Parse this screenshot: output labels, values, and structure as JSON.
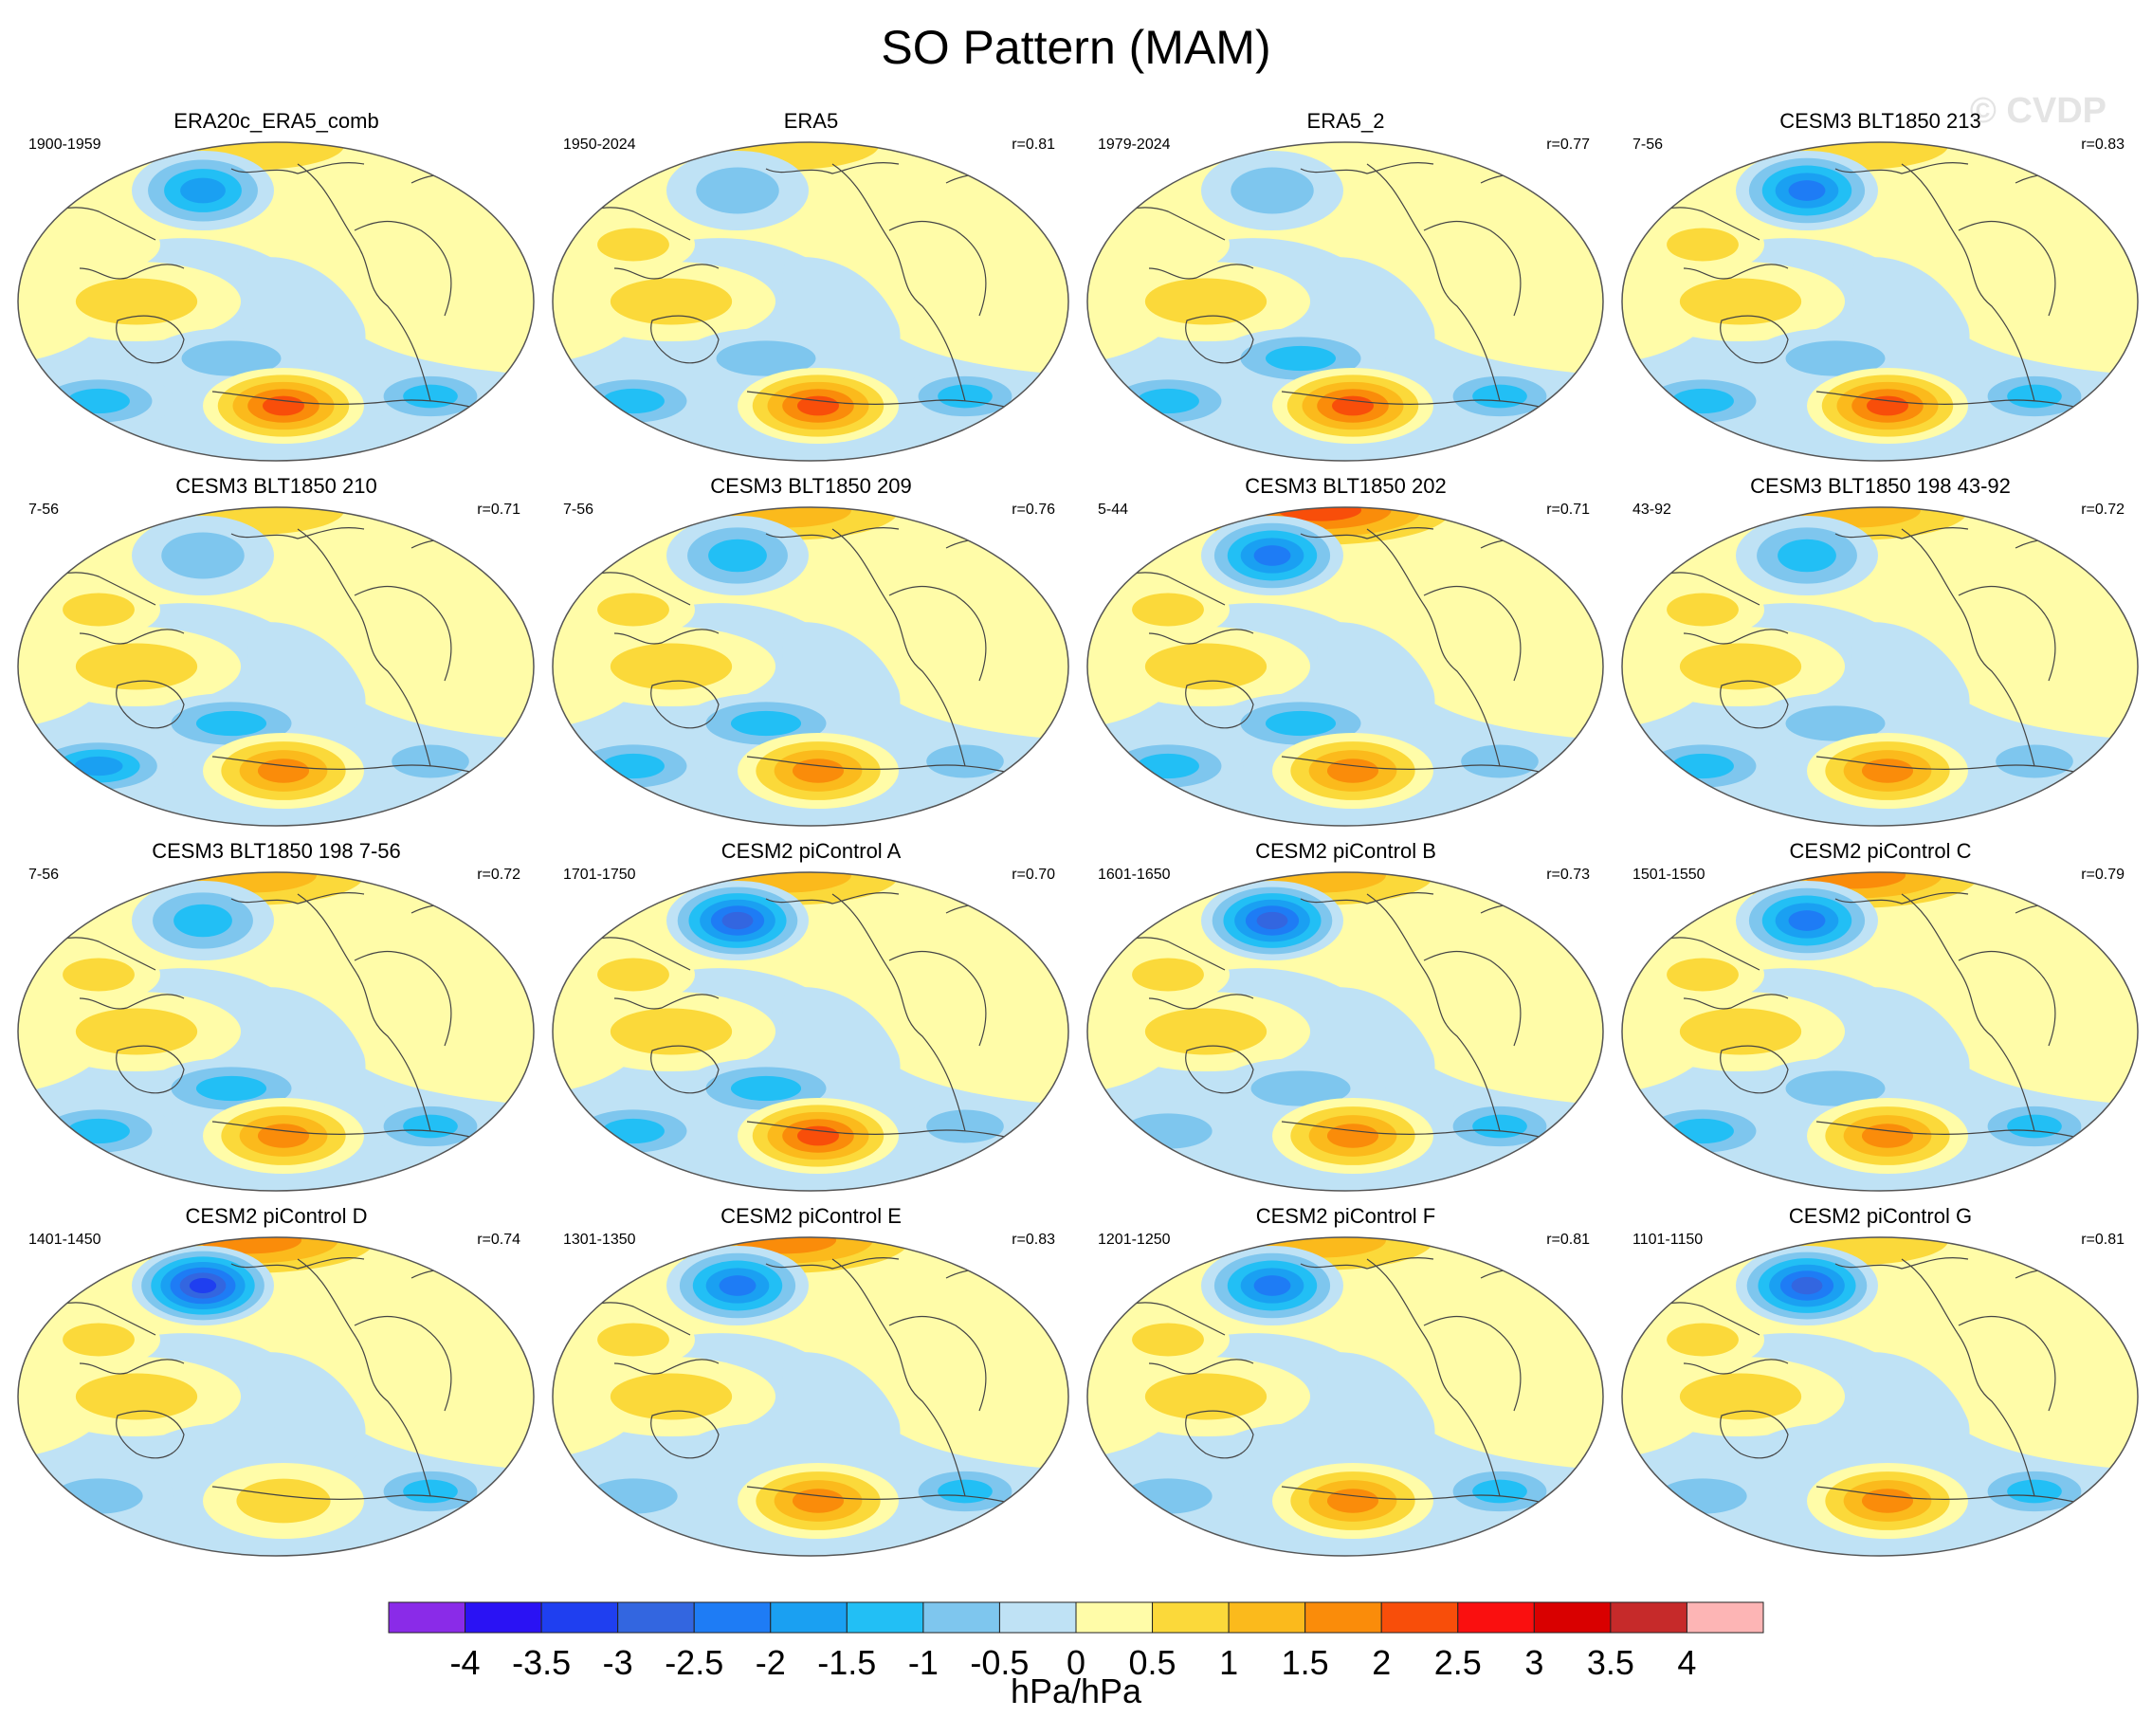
{
  "title": "SO Pattern (MAM)",
  "watermark": "© CVDP",
  "units": "hPa/hPa",
  "colorbar": {
    "labels": [
      "-4",
      "-3.5",
      "-3",
      "-2.5",
      "-2",
      "-1.5",
      "-1",
      "-0.5",
      "0",
      "0.5",
      "1",
      "1.5",
      "2",
      "2.5",
      "3",
      "3.5",
      "4"
    ],
    "colors": [
      "#8a2be8",
      "#2a12f4",
      "#1f3ff0",
      "#3366e0",
      "#1e7cf5",
      "#1aa0f2",
      "#22bff5",
      "#7ec6ee",
      "#bfe2f5",
      "#fffca8",
      "#fbd93a",
      "#fbba1c",
      "#fa8c0a",
      "#f84e0a",
      "#fa0f0f",
      "#d90000",
      "#c62a2a",
      "#fdb5b5"
    ]
  },
  "panels": [
    {
      "title": "ERA20c_ERA5_comb",
      "period": "1900-1959",
      "r": "",
      "amp": {
        "nh": 0.55,
        "npac": -1.6,
        "wpac": 0.5,
        "sh": -1.2,
        "pac": 2.4,
        "satl": -1.4
      }
    },
    {
      "title": "ERA5",
      "period": "1950-2024",
      "r": "r=0.81",
      "amp": {
        "nh": 0.6,
        "npac": -0.6,
        "wpac": 0.8,
        "sh": -1.2,
        "pac": 2.2,
        "satl": -1.3
      }
    },
    {
      "title": "ERA5_2",
      "period": "1979-2024",
      "r": "r=0.77",
      "amp": {
        "nh": 0.4,
        "npac": -0.6,
        "wpac": 0.7,
        "sh": -1.3,
        "pac": 2.3,
        "satl": -1.4
      }
    },
    {
      "title": "CESM3 BLT1850 213",
      "period": "7-56",
      "r": "r=0.83",
      "amp": {
        "nh": 0.6,
        "npac": -2.0,
        "wpac": 0.8,
        "sh": -1.0,
        "pac": 2.0,
        "satl": -1.0
      }
    },
    {
      "title": "CESM3 BLT1850 210",
      "period": "7-56",
      "r": "r=0.71",
      "amp": {
        "nh": 0.9,
        "npac": -0.6,
        "wpac": 0.9,
        "sh": -1.5,
        "pac": 1.9,
        "satl": -0.8
      }
    },
    {
      "title": "CESM3 BLT1850 209",
      "period": "7-56",
      "r": "r=0.76",
      "amp": {
        "nh": 1.4,
        "npac": -1.2,
        "wpac": 0.9,
        "sh": -1.3,
        "pac": 1.6,
        "satl": -0.8
      }
    },
    {
      "title": "CESM3 BLT1850 202",
      "period": "5-44",
      "r": "r=0.71",
      "amp": {
        "nh": 2.0,
        "npac": -2.2,
        "wpac": 0.9,
        "sh": -1.4,
        "pac": 1.9,
        "satl": -0.9
      }
    },
    {
      "title": "CESM3 BLT1850 198 43-92",
      "period": "43-92",
      "r": "r=0.72",
      "amp": {
        "nh": 1.3,
        "npac": -1.4,
        "wpac": 0.9,
        "sh": -1.0,
        "pac": 1.6,
        "satl": -0.7
      }
    },
    {
      "title": "CESM3 BLT1850 198 7-56",
      "period": "7-56",
      "r": "r=0.72",
      "amp": {
        "nh": 1.4,
        "npac": -1.3,
        "wpac": 0.8,
        "sh": -1.3,
        "pac": 1.5,
        "satl": -1.1
      }
    },
    {
      "title": "CESM2 piControl A",
      "period": "1701-1750",
      "r": "r=0.70",
      "amp": {
        "nh": 1.0,
        "npac": -2.7,
        "wpac": 0.9,
        "sh": -1.3,
        "pac": 2.0,
        "satl": -0.9
      }
    },
    {
      "title": "CESM2 piControl B",
      "period": "1601-1650",
      "r": "r=0.73",
      "amp": {
        "nh": 1.3,
        "npac": -2.7,
        "wpac": 0.9,
        "sh": -0.9,
        "pac": 1.5,
        "satl": -1.1
      }
    },
    {
      "title": "CESM2 piControl C",
      "period": "1501-1550",
      "r": "r=0.79",
      "amp": {
        "nh": 1.6,
        "npac": -2.2,
        "wpac": 0.9,
        "sh": -1.1,
        "pac": 1.5,
        "satl": -1.2
      }
    },
    {
      "title": "CESM2 piControl D",
      "period": "1401-1450",
      "r": "r=0.74",
      "amp": {
        "nh": 1.6,
        "npac": -3.2,
        "wpac": 0.9,
        "sh": -0.6,
        "pac": 0.9,
        "satl": -1.4
      }
    },
    {
      "title": "CESM2 piControl E",
      "period": "1301-1350",
      "r": "r=0.83",
      "amp": {
        "nh": 1.8,
        "npac": -2.2,
        "wpac": 0.9,
        "sh": -0.5,
        "pac": 1.9,
        "satl": -1.1
      }
    },
    {
      "title": "CESM2 piControl F",
      "period": "1201-1250",
      "r": "r=0.81",
      "amp": {
        "nh": 1.3,
        "npac": -2.2,
        "wpac": 0.9,
        "sh": -0.6,
        "pac": 1.7,
        "satl": -1.2
      }
    },
    {
      "title": "CESM2 piControl G",
      "period": "1101-1150",
      "r": "r=0.81",
      "amp": {
        "nh": 0.9,
        "npac": -2.5,
        "wpac": 0.9,
        "sh": -0.6,
        "pac": 1.6,
        "satl": -1.1
      }
    }
  ]
}
